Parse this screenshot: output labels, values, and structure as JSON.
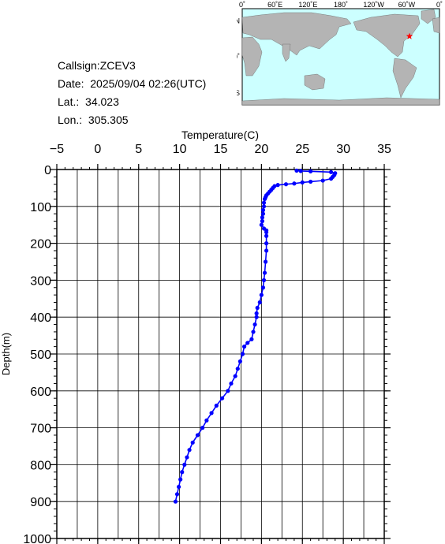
{
  "info": {
    "callsign_label": "Callsign:",
    "callsign": "ZCEV3",
    "date_label": "Date:",
    "date": "2025/09/04 02:26(UTC)",
    "lat_label": "Lat.:",
    "lat": "34.023",
    "lon_label": "Lon.:",
    "lon": "305.305"
  },
  "map": {
    "lon_ticks": [
      "0˚",
      "60˚E",
      "120˚E",
      "180˚",
      "120˚W",
      "60˚W",
      "0˚"
    ],
    "lat_ticks": [
      "60˚N",
      "0˚",
      "60˚S"
    ],
    "ocean_color": "#ccffff",
    "land_color": "#b4b4b4",
    "marker_icon": "star-icon",
    "marker_color": "#ff0000",
    "marker_lat": 34.023,
    "marker_lon": 305.305
  },
  "chart_data": {
    "type": "line",
    "title": "",
    "xlabel": "Temperature(C)",
    "ylabel": "Depth(m)",
    "xlim": [
      -5,
      35
    ],
    "ylim": [
      1000,
      0
    ],
    "x_axis_position": "top",
    "x_ticks": [
      "−5",
      "0",
      "5",
      "10",
      "15",
      "20",
      "25",
      "30",
      "35"
    ],
    "y_ticks": [
      "0",
      "100",
      "200",
      "300",
      "400",
      "500",
      "600",
      "700",
      "800",
      "900",
      "1000"
    ],
    "grid": true,
    "color": "#0000ff",
    "series": [
      {
        "depth": [
          3,
          4,
          5,
          7,
          10,
          15,
          20,
          25,
          30,
          33,
          35,
          38,
          40,
          42,
          45,
          50,
          55,
          60,
          65,
          70,
          75,
          80,
          90,
          100,
          110,
          120,
          130,
          140,
          150,
          160,
          165,
          170,
          180,
          200,
          220,
          250,
          280,
          300,
          320,
          340,
          360,
          375,
          390,
          400,
          420,
          440,
          460,
          470,
          480,
          500,
          520,
          540,
          560,
          580,
          600,
          620,
          640,
          660,
          680,
          700,
          720,
          740,
          760,
          780,
          800,
          820,
          840,
          860,
          880,
          900
        ],
        "temperature": [
          24.3,
          24.8,
          26.0,
          28.5,
          29.0,
          28.9,
          28.7,
          28.5,
          27.5,
          26.0,
          25.0,
          24.0,
          23.0,
          22.0,
          21.6,
          21.4,
          21.2,
          21.0,
          20.8,
          20.6,
          20.5,
          20.4,
          20.3,
          20.3,
          20.2,
          20.2,
          20.1,
          20.1,
          20.0,
          20.3,
          20.6,
          20.6,
          20.6,
          20.6,
          20.6,
          20.5,
          20.4,
          20.3,
          20.2,
          20.0,
          19.8,
          19.5,
          19.4,
          19.4,
          19.2,
          19.0,
          18.8,
          18.3,
          17.9,
          17.7,
          17.4,
          17.1,
          16.8,
          16.3,
          15.9,
          15.2,
          14.5,
          13.9,
          13.3,
          12.8,
          12.2,
          11.6,
          11.2,
          10.9,
          10.6,
          10.3,
          10.1,
          9.9,
          9.7,
          9.5
        ]
      }
    ]
  }
}
